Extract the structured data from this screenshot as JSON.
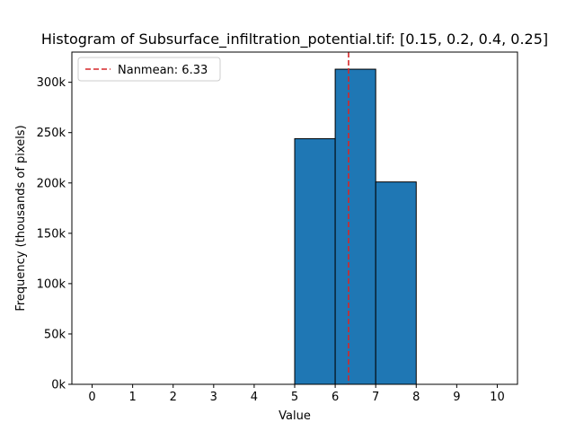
{
  "chart_data": {
    "type": "bar",
    "title": "Histogram of Subsurface_infiltration_potential.tif: [0.15, 0.2, 0.4, 0.25]",
    "xlabel": "Value",
    "ylabel": "Frequency (thousands of pixels)",
    "xlim": [
      -0.5,
      10.5
    ],
    "ylim": [
      0,
      330000
    ],
    "x_ticks": [
      0,
      1,
      2,
      3,
      4,
      5,
      6,
      7,
      8,
      9,
      10
    ],
    "y_ticks": [
      0,
      50000,
      100000,
      150000,
      200000,
      250000,
      300000
    ],
    "y_tick_labels": [
      "0k",
      "50k",
      "100k",
      "150k",
      "200k",
      "250k",
      "300k"
    ],
    "bins": [
      {
        "start": 5,
        "end": 6,
        "value": 244000
      },
      {
        "start": 6,
        "end": 7,
        "value": 313000
      },
      {
        "start": 7,
        "end": 8,
        "value": 201000
      }
    ],
    "bar_color": "#1f77b4",
    "mean_line": {
      "value": 6.33,
      "label": "Nanmean: 6.33",
      "color": "#d62728"
    },
    "legend_position": "top-left",
    "grid": false
  }
}
